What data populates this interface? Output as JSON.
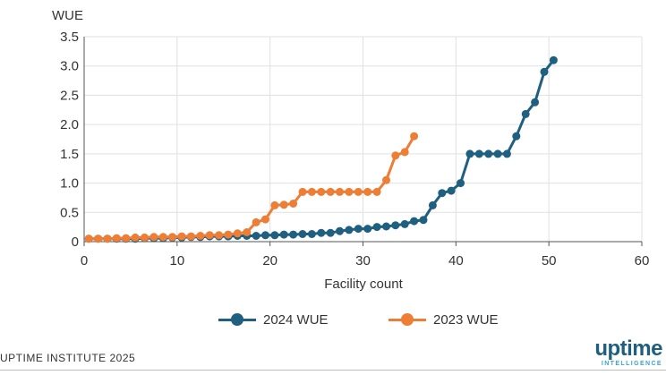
{
  "chart_data": {
    "type": "line",
    "xlabel": "Facility count",
    "ylabel": "WUE",
    "xlim": [
      0,
      60
    ],
    "ylim": [
      0,
      3.5
    ],
    "x_ticks": [
      "0",
      "10",
      "20",
      "30",
      "40",
      "50",
      "60"
    ],
    "y_ticks": [
      "0",
      "0.5",
      "1.0",
      "1.5",
      "2.0",
      "2.5",
      "3.0",
      "3.5"
    ],
    "grid": true,
    "legend_position": "bottom",
    "series": [
      {
        "name": "2024 WUE",
        "color": "#1f5f7f",
        "x": [
          0.5,
          1.5,
          2.5,
          3.5,
          4.5,
          5.5,
          6.5,
          7.5,
          8.5,
          9.5,
          10.5,
          11.5,
          12.5,
          13.5,
          14.5,
          15.5,
          16.5,
          17.5,
          18.5,
          19.5,
          20.5,
          21.5,
          22.5,
          23.5,
          24.5,
          25.5,
          26.5,
          27.5,
          28.5,
          29.5,
          30.5,
          31.5,
          32.5,
          33.5,
          34.5,
          35.5,
          36.5,
          37.5,
          38.5,
          39.5,
          40.5,
          41.5,
          42.5,
          43.5,
          44.5,
          45.5,
          46.5,
          47.5,
          48.5,
          49.5,
          50.5
        ],
        "y": [
          0.05,
          0.05,
          0.05,
          0.05,
          0.05,
          0.05,
          0.06,
          0.06,
          0.06,
          0.07,
          0.07,
          0.08,
          0.08,
          0.09,
          0.09,
          0.09,
          0.1,
          0.1,
          0.1,
          0.11,
          0.11,
          0.12,
          0.12,
          0.13,
          0.13,
          0.15,
          0.15,
          0.18,
          0.2,
          0.22,
          0.22,
          0.25,
          0.26,
          0.28,
          0.3,
          0.35,
          0.37,
          0.62,
          0.83,
          0.87,
          1.0,
          1.5,
          1.5,
          1.5,
          1.5,
          1.5,
          1.8,
          2.18,
          2.38,
          2.9,
          3.1
        ]
      },
      {
        "name": "2023 WUE",
        "color": "#ee7d35",
        "x": [
          0.5,
          1.5,
          2.5,
          3.5,
          4.5,
          5.5,
          6.5,
          7.5,
          8.5,
          9.5,
          10.5,
          11.5,
          12.5,
          13.5,
          14.5,
          15.5,
          16.5,
          17.5,
          18.5,
          19.5,
          20.5,
          21.5,
          22.5,
          23.5,
          24.5,
          25.5,
          26.5,
          27.5,
          28.5,
          29.5,
          30.5,
          31.5,
          32.5,
          33.5,
          34.5,
          35.5
        ],
        "y": [
          0.05,
          0.05,
          0.05,
          0.06,
          0.06,
          0.07,
          0.07,
          0.08,
          0.08,
          0.08,
          0.09,
          0.09,
          0.1,
          0.11,
          0.11,
          0.12,
          0.14,
          0.16,
          0.33,
          0.38,
          0.62,
          0.63,
          0.65,
          0.85,
          0.85,
          0.85,
          0.85,
          0.85,
          0.85,
          0.85,
          0.85,
          0.85,
          1.05,
          1.47,
          1.53,
          1.8
        ]
      }
    ]
  },
  "footer": {
    "source": "UPTIME INSTITUTE 2025",
    "logo_word": "uptime",
    "logo_sub": "INTELLIGENCE"
  }
}
